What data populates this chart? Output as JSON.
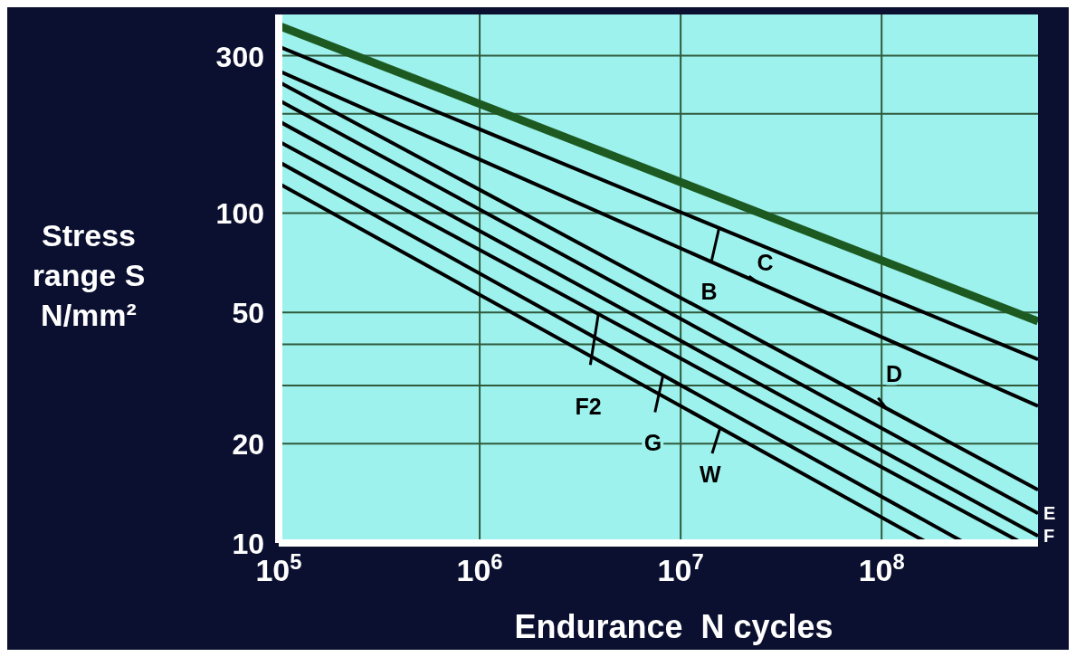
{
  "chart_data": {
    "type": "line",
    "xlabel": "Endurance  N cycles",
    "ylabel": "Stress range S N/mm²",
    "log": "xy",
    "grid": true,
    "legend": "bottom right",
    "marker": "none",
    "line_style": "solid",
    "xlim": [
      100000,
      600000000
    ],
    "ylim": [
      10,
      400
    ],
    "xticks": [
      {
        "value": 100000,
        "label": "10$^{5}$"
      },
      {
        "value": 1000000,
        "label": "10$^{6}$"
      },
      {
        "value": 10000000,
        "label": "10$^{7}$"
      },
      {
        "value": 100000000,
        "label": "10$^{8}$"
      }
    ],
    "yticks": [
      10,
      20,
      {
        "value": 30,
        "label": null
      },
      {
        "value": 40,
        "label": null
      },
      50,
      100,
      {
        "value": 200,
        "label": null
      },
      300
    ],
    "series": [
      {
        "color": "#1d5a22",
        "x": [
          100000,
          600000000
        ],
        "values": [
          370,
          47
        ]
      },
      {
        "name": "B",
        "color": "#000000",
        "x": [
          100000,
          600000000
        ],
        "values": [
          320,
          36
        ]
      },
      {
        "name": "C",
        "color": "#000000",
        "x": [
          100000,
          600000000
        ],
        "values": [
          270,
          26
        ]
      },
      {
        "name": "D",
        "color": "#000000",
        "x": [
          100000,
          600000000
        ],
        "values": [
          250,
          14.5
        ]
      },
      {
        "name": "E",
        "color": "#000000",
        "x": [
          100000,
          600000000
        ],
        "values": [
          220,
          12.3
        ]
      },
      {
        "name": "F",
        "color": "#000000",
        "x": [
          100000,
          600000000
        ],
        "values": [
          190,
          10.5
        ]
      },
      {
        "name": "F2",
        "color": "#000000",
        "x": [
          100000,
          500000000
        ],
        "values": [
          165,
          10
        ]
      },
      {
        "name": "G",
        "color": "#000000",
        "x": [
          100000,
          260000000
        ],
        "values": [
          143,
          10
        ]
      },
      {
        "name": "W",
        "color": "#000000",
        "x": [
          100000,
          170000000
        ],
        "values": [
          123,
          10
        ]
      }
    ]
  }
}
